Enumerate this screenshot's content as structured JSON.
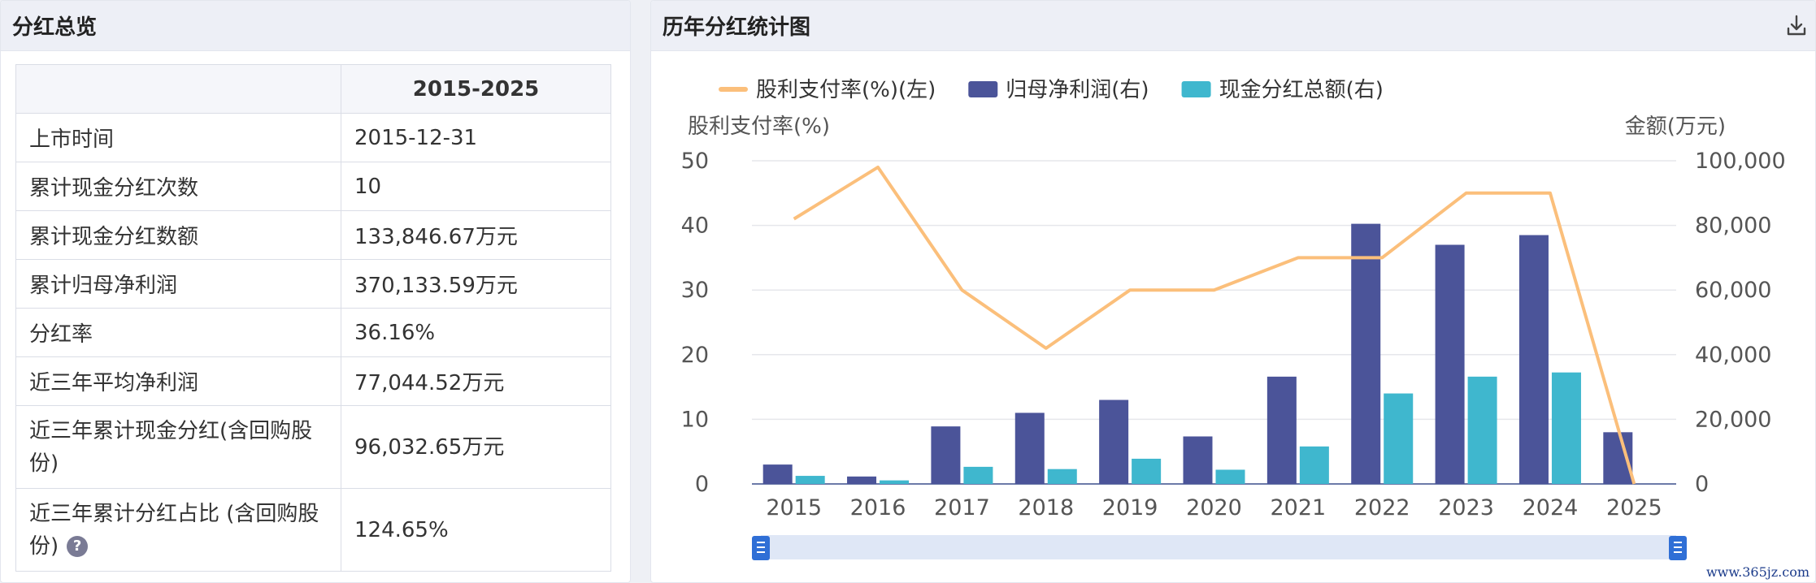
{
  "summary": {
    "title": "分红总览",
    "column_header": "2015-2025",
    "rows": [
      {
        "label": "上市时间",
        "value": "2015-12-31"
      },
      {
        "label": "累计现金分红次数",
        "value": "10"
      },
      {
        "label": "累计现金分红数额",
        "value": "133,846.67万元"
      },
      {
        "label": "累计归母净利润",
        "value": "370,133.59万元"
      },
      {
        "label": "分红率",
        "value": "36.16%"
      },
      {
        "label": "近三年平均净利润",
        "value": "77,044.52万元"
      },
      {
        "label": "近三年累计现金分红(含回购股份)",
        "value": "96,032.65万元"
      },
      {
        "label": "近三年累计分红占比 (含回购股份)",
        "value": "124.65%"
      }
    ],
    "help_icon_text": "?"
  },
  "chart_panel": {
    "title": "历年分红统计图",
    "download_icon": "download-icon"
  },
  "watermark": "www.365jz.com",
  "chart_data": {
    "type": "bar",
    "title": "",
    "categories": [
      "2015",
      "2016",
      "2017",
      "2018",
      "2019",
      "2020",
      "2021",
      "2022",
      "2023",
      "2024",
      "2025"
    ],
    "y_left": {
      "label": "股利支付率(%)",
      "ylim": [
        0,
        50
      ],
      "ticks": [
        0,
        10,
        20,
        30,
        40,
        50
      ]
    },
    "y_right": {
      "label": "金额(万元)",
      "ylim": [
        0,
        100000
      ],
      "ticks": [
        0,
        20000,
        40000,
        60000,
        80000,
        100000
      ],
      "tick_labels": [
        "0",
        "20,000",
        "40,000",
        "60,000",
        "80,000",
        "100,000"
      ]
    },
    "series": [
      {
        "name": "股利支付率(%)(左)",
        "type": "line",
        "axis": "left",
        "color": "#fbbf7b",
        "values": [
          41,
          49,
          30,
          21,
          30,
          30,
          35,
          35,
          45,
          45,
          0
        ]
      },
      {
        "name": "归母净利润(右)",
        "type": "bar",
        "axis": "right",
        "color": "#4b5499",
        "values": [
          6000,
          2300,
          17800,
          22000,
          26000,
          14700,
          33200,
          80500,
          74000,
          77000,
          16000
        ]
      },
      {
        "name": "现金分红总额(右)",
        "type": "bar",
        "axis": "right",
        "color": "#3fb7ce",
        "values": [
          2500,
          1100,
          5300,
          4600,
          7800,
          4400,
          11600,
          28000,
          33200,
          34500,
          0
        ]
      }
    ],
    "grid": true,
    "legend": "top-left"
  }
}
